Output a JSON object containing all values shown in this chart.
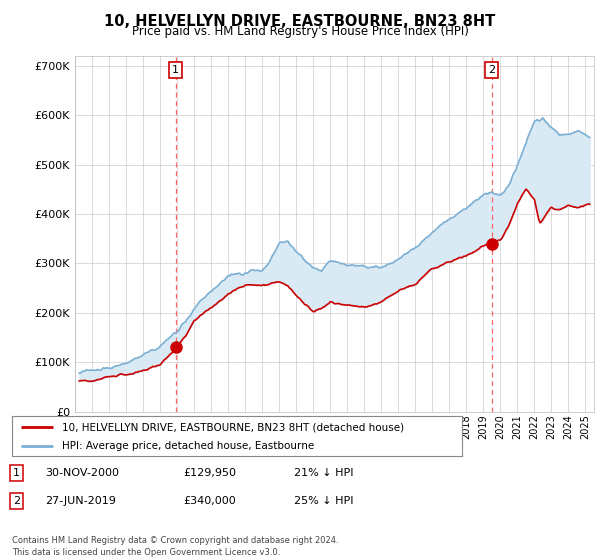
{
  "title": "10, HELVELLYN DRIVE, EASTBOURNE, BN23 8HT",
  "subtitle": "Price paid vs. HM Land Registry's House Price Index (HPI)",
  "ylabel_ticks": [
    "£0",
    "£100K",
    "£200K",
    "£300K",
    "£400K",
    "£500K",
    "£600K",
    "£700K"
  ],
  "ytick_values": [
    0,
    100000,
    200000,
    300000,
    400000,
    500000,
    600000,
    700000
  ],
  "ylim": [
    0,
    720000
  ],
  "xlim_start": 1995.25,
  "xlim_end": 2025.5,
  "purchase1_date": 2000.92,
  "purchase1_price": 129950,
  "purchase1_label": "1",
  "purchase2_date": 2019.49,
  "purchase2_price": 340000,
  "purchase2_label": "2",
  "hpi_color": "#7bafd4",
  "hpi_fill_color": "#daeaf5",
  "price_color": "#cc0000",
  "vline_color": "#ff5555",
  "dot_color": "#cc0000",
  "legend_label1": "10, HELVELLYN DRIVE, EASTBOURNE, BN23 8HT (detached house)",
  "legend_label2": "HPI: Average price, detached house, Eastbourne",
  "table_row1": [
    "1",
    "30-NOV-2000",
    "£129,950",
    "21% ↓ HPI"
  ],
  "table_row2": [
    "2",
    "27-JUN-2019",
    "£340,000",
    "25% ↓ HPI"
  ],
  "footer": "Contains HM Land Registry data © Crown copyright and database right 2024.\nThis data is licensed under the Open Government Licence v3.0.",
  "background_color": "#ffffff",
  "grid_color": "#cccccc"
}
